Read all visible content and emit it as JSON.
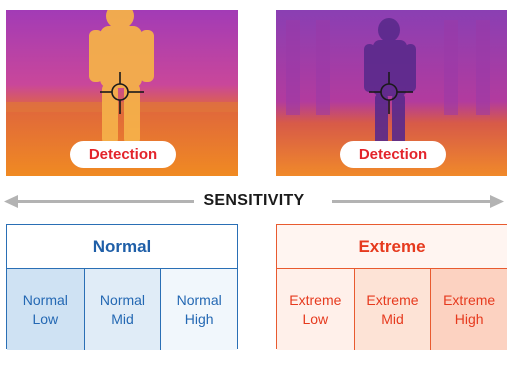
{
  "images": [
    {
      "badge": "Detection"
    },
    {
      "badge": "Detection"
    }
  ],
  "sensitivity": {
    "label": "SENSITIVITY",
    "arrow_color": "#b3b3b3"
  },
  "tables": {
    "normal": {
      "title": "Normal",
      "color": "#2a6fb5",
      "levels": [
        {
          "line1": "Normal",
          "line2": "Low"
        },
        {
          "line1": "Normal",
          "line2": "Mid"
        },
        {
          "line1": "Normal",
          "line2": "High"
        }
      ]
    },
    "extreme": {
      "title": "Extreme",
      "color": "#e85a2f",
      "levels": [
        {
          "line1": "Extreme",
          "line2": "Low"
        },
        {
          "line1": "Extreme",
          "line2": "Mid"
        },
        {
          "line1": "Extreme",
          "line2": "High"
        }
      ]
    }
  },
  "colors": {
    "badge_text": "#e3242b",
    "crosshair": "#1a1a1a"
  }
}
